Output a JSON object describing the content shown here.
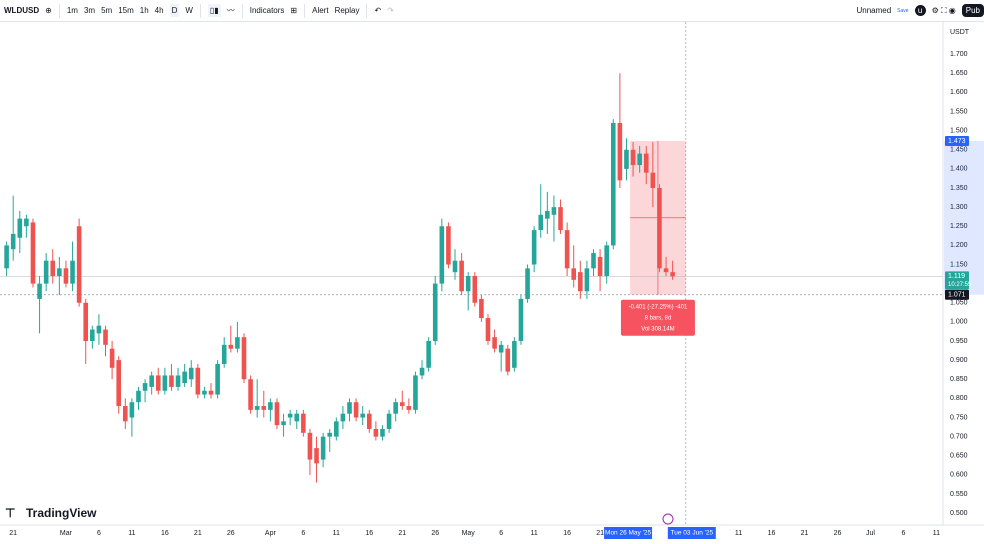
{
  "toolbar": {
    "symbol": "WLDUSD",
    "intervals": [
      "1m",
      "3m",
      "5m",
      "15m",
      "1h",
      "4h",
      "D",
      "W"
    ],
    "indicators": "Indicators",
    "alert": "Alert",
    "replay": "Replay",
    "layout_name": "Unnamed",
    "save": "Save",
    "avatar": "u",
    "publish": "Pub"
  },
  "chart_data": {
    "type": "candlestick",
    "currency": "USDT",
    "logo": "TradingView",
    "up_color": "#26a69a",
    "down_color": "#ef5350",
    "grid": false,
    "xlim": [
      "2025-02-19",
      "2025-07-12"
    ],
    "ylim": [
      0.469,
      1.784
    ],
    "yticks": [
      {
        "value": 0.5,
        "label": "0.500"
      },
      {
        "value": 0.55,
        "label": "0.550"
      },
      {
        "value": 0.6,
        "label": "0.600"
      },
      {
        "value": 0.65,
        "label": "0.650"
      },
      {
        "value": 0.7,
        "label": "0.700"
      },
      {
        "value": 0.75,
        "label": "0.750"
      },
      {
        "value": 0.8,
        "label": "0.800"
      },
      {
        "value": 0.85,
        "label": "0.850"
      },
      {
        "value": 0.9,
        "label": "0.900"
      },
      {
        "value": 0.95,
        "label": "0.950"
      },
      {
        "value": 1.0,
        "label": "1.000"
      },
      {
        "value": 1.05,
        "label": "1.050"
      },
      {
        "value": 1.1,
        "label": "1.100"
      },
      {
        "value": 1.15,
        "label": "1.150"
      },
      {
        "value": 1.2,
        "label": "1.200"
      },
      {
        "value": 1.25,
        "label": "1.250"
      },
      {
        "value": 1.3,
        "label": "1.300"
      },
      {
        "value": 1.35,
        "label": "1.350"
      },
      {
        "value": 1.4,
        "label": "1.400"
      },
      {
        "value": 1.45,
        "label": "1.450"
      },
      {
        "value": 1.5,
        "label": "1.500"
      },
      {
        "value": 1.55,
        "label": "1.550"
      },
      {
        "value": 1.6,
        "label": "1.600"
      },
      {
        "value": 1.65,
        "label": "1.650"
      },
      {
        "value": 1.7,
        "label": "1.700"
      }
    ],
    "xticks": [
      {
        "value": "2025-02-21",
        "label": "21"
      },
      {
        "value": "2025-03-01",
        "label": "Mar"
      },
      {
        "value": "2025-03-06",
        "label": "6"
      },
      {
        "value": "2025-03-11",
        "label": "11"
      },
      {
        "value": "2025-03-16",
        "label": "16"
      },
      {
        "value": "2025-03-21",
        "label": "21"
      },
      {
        "value": "2025-03-26",
        "label": "26"
      },
      {
        "value": "2025-04-01",
        "label": "Apr"
      },
      {
        "value": "2025-04-06",
        "label": "6"
      },
      {
        "value": "2025-04-11",
        "label": "11"
      },
      {
        "value": "2025-04-16",
        "label": "16"
      },
      {
        "value": "2025-04-21",
        "label": "21"
      },
      {
        "value": "2025-04-26",
        "label": "26"
      },
      {
        "value": "2025-05-01",
        "label": "May"
      },
      {
        "value": "2025-05-06",
        "label": "6"
      },
      {
        "value": "2025-05-11",
        "label": "11"
      },
      {
        "value": "2025-05-16",
        "label": "16"
      },
      {
        "value": "2025-05-21",
        "label": "21"
      },
      {
        "value": "2025-06-11",
        "label": "11"
      },
      {
        "value": "2025-06-16",
        "label": "16"
      },
      {
        "value": "2025-06-21",
        "label": "21"
      },
      {
        "value": "2025-06-26",
        "label": "26"
      },
      {
        "value": "2025-07-01",
        "label": "Jul"
      },
      {
        "value": "2025-07-06",
        "label": "6"
      },
      {
        "value": "2025-07-11",
        "label": "11"
      }
    ],
    "x": [
      "2025-02-20",
      "2025-02-21",
      "2025-02-22",
      "2025-02-23",
      "2025-02-24",
      "2025-02-25",
      "2025-02-26",
      "2025-02-27",
      "2025-02-28",
      "2025-03-01",
      "2025-03-02",
      "2025-03-03",
      "2025-03-04",
      "2025-03-05",
      "2025-03-06",
      "2025-03-07",
      "2025-03-08",
      "2025-03-09",
      "2025-03-10",
      "2025-03-11",
      "2025-03-12",
      "2025-03-13",
      "2025-03-14",
      "2025-03-15",
      "2025-03-16",
      "2025-03-17",
      "2025-03-18",
      "2025-03-19",
      "2025-03-20",
      "2025-03-21",
      "2025-03-22",
      "2025-03-23",
      "2025-03-24",
      "2025-03-25",
      "2025-03-26",
      "2025-03-27",
      "2025-03-28",
      "2025-03-29",
      "2025-03-30",
      "2025-03-31",
      "2025-04-01",
      "2025-04-02",
      "2025-04-03",
      "2025-04-04",
      "2025-04-05",
      "2025-04-06",
      "2025-04-07",
      "2025-04-08",
      "2025-04-09",
      "2025-04-10",
      "2025-04-11",
      "2025-04-12",
      "2025-04-13",
      "2025-04-14",
      "2025-04-15",
      "2025-04-16",
      "2025-04-17",
      "2025-04-18",
      "2025-04-19",
      "2025-04-20",
      "2025-04-21",
      "2025-04-22",
      "2025-04-23",
      "2025-04-24",
      "2025-04-25",
      "2025-04-26",
      "2025-04-27",
      "2025-04-28",
      "2025-04-29",
      "2025-04-30",
      "2025-05-01",
      "2025-05-02",
      "2025-05-03",
      "2025-05-04",
      "2025-05-05",
      "2025-05-06",
      "2025-05-07",
      "2025-05-08",
      "2025-05-09",
      "2025-05-10",
      "2025-05-11",
      "2025-05-12",
      "2025-05-13",
      "2025-05-14",
      "2025-05-15",
      "2025-05-16",
      "2025-05-17",
      "2025-05-18",
      "2025-05-19",
      "2025-05-20",
      "2025-05-21",
      "2025-05-22",
      "2025-05-23",
      "2025-05-24",
      "2025-05-25",
      "2025-05-26",
      "2025-05-27",
      "2025-05-28",
      "2025-05-29",
      "2025-05-30",
      "2025-05-31",
      "2025-06-01"
    ],
    "ohlc": [
      [
        1.14,
        1.21,
        1.12,
        1.2
      ],
      [
        1.19,
        1.33,
        1.16,
        1.23
      ],
      [
        1.22,
        1.29,
        1.18,
        1.27
      ],
      [
        1.25,
        1.28,
        1.22,
        1.27
      ],
      [
        1.26,
        1.27,
        1.09,
        1.1
      ],
      [
        1.06,
        1.12,
        0.97,
        1.1
      ],
      [
        1.1,
        1.18,
        1.08,
        1.16
      ],
      [
        1.16,
        1.19,
        1.1,
        1.12
      ],
      [
        1.12,
        1.17,
        1.07,
        1.14
      ],
      [
        1.14,
        1.16,
        1.09,
        1.1
      ],
      [
        1.1,
        1.21,
        1.08,
        1.16
      ],
      [
        1.25,
        1.27,
        1.04,
        1.05
      ],
      [
        1.05,
        1.06,
        0.89,
        0.95
      ],
      [
        0.95,
        0.99,
        0.93,
        0.98
      ],
      [
        0.97,
        1.02,
        0.94,
        0.99
      ],
      [
        0.98,
        0.99,
        0.91,
        0.94
      ],
      [
        0.93,
        0.95,
        0.85,
        0.88
      ],
      [
        0.9,
        0.91,
        0.76,
        0.78
      ],
      [
        0.78,
        0.8,
        0.72,
        0.74
      ],
      [
        0.75,
        0.8,
        0.7,
        0.79
      ],
      [
        0.79,
        0.83,
        0.77,
        0.82
      ],
      [
        0.82,
        0.85,
        0.79,
        0.84
      ],
      [
        0.83,
        0.87,
        0.81,
        0.86
      ],
      [
        0.86,
        0.88,
        0.81,
        0.82
      ],
      [
        0.82,
        0.88,
        0.81,
        0.86
      ],
      [
        0.86,
        0.89,
        0.82,
        0.83
      ],
      [
        0.83,
        0.88,
        0.82,
        0.86
      ],
      [
        0.84,
        0.89,
        0.83,
        0.87
      ],
      [
        0.85,
        0.9,
        0.83,
        0.88
      ],
      [
        0.88,
        0.89,
        0.8,
        0.81
      ],
      [
        0.81,
        0.83,
        0.8,
        0.82
      ],
      [
        0.82,
        0.84,
        0.8,
        0.81
      ],
      [
        0.81,
        0.9,
        0.8,
        0.89
      ],
      [
        0.89,
        0.96,
        0.88,
        0.94
      ],
      [
        0.94,
        0.99,
        0.92,
        0.93
      ],
      [
        0.93,
        1.0,
        0.92,
        0.96
      ],
      [
        0.96,
        0.97,
        0.84,
        0.85
      ],
      [
        0.85,
        0.86,
        0.76,
        0.77
      ],
      [
        0.77,
        0.85,
        0.75,
        0.78
      ],
      [
        0.78,
        0.82,
        0.75,
        0.77
      ],
      [
        0.77,
        0.8,
        0.74,
        0.79
      ],
      [
        0.79,
        0.8,
        0.72,
        0.73
      ],
      [
        0.73,
        0.76,
        0.7,
        0.74
      ],
      [
        0.75,
        0.77,
        0.73,
        0.76
      ],
      [
        0.74,
        0.77,
        0.72,
        0.76
      ],
      [
        0.76,
        0.77,
        0.7,
        0.71
      ],
      [
        0.71,
        0.72,
        0.6,
        0.64
      ],
      [
        0.67,
        0.7,
        0.58,
        0.63
      ],
      [
        0.64,
        0.71,
        0.62,
        0.7
      ],
      [
        0.7,
        0.72,
        0.66,
        0.71
      ],
      [
        0.7,
        0.75,
        0.69,
        0.74
      ],
      [
        0.74,
        0.78,
        0.72,
        0.76
      ],
      [
        0.76,
        0.8,
        0.74,
        0.79
      ],
      [
        0.79,
        0.8,
        0.74,
        0.75
      ],
      [
        0.75,
        0.78,
        0.73,
        0.76
      ],
      [
        0.76,
        0.77,
        0.71,
        0.72
      ],
      [
        0.72,
        0.74,
        0.69,
        0.7
      ],
      [
        0.7,
        0.73,
        0.69,
        0.72
      ],
      [
        0.72,
        0.77,
        0.71,
        0.76
      ],
      [
        0.76,
        0.8,
        0.74,
        0.79
      ],
      [
        0.79,
        0.82,
        0.77,
        0.78
      ],
      [
        0.78,
        0.8,
        0.76,
        0.77
      ],
      [
        0.77,
        0.87,
        0.76,
        0.86
      ],
      [
        0.86,
        0.9,
        0.85,
        0.88
      ],
      [
        0.88,
        0.96,
        0.87,
        0.95
      ],
      [
        0.95,
        1.12,
        0.94,
        1.1
      ],
      [
        1.1,
        1.27,
        1.08,
        1.25
      ],
      [
        1.25,
        1.26,
        1.14,
        1.15
      ],
      [
        1.13,
        1.19,
        1.11,
        1.16
      ],
      [
        1.16,
        1.18,
        1.07,
        1.08
      ],
      [
        1.08,
        1.13,
        1.03,
        1.12
      ],
      [
        1.12,
        1.13,
        1.04,
        1.05
      ],
      [
        1.06,
        1.07,
        1.0,
        1.01
      ],
      [
        1.01,
        1.02,
        0.94,
        0.95
      ],
      [
        0.96,
        0.98,
        0.92,
        0.93
      ],
      [
        0.92,
        0.95,
        0.87,
        0.94
      ],
      [
        0.93,
        0.94,
        0.86,
        0.87
      ],
      [
        0.88,
        0.96,
        0.87,
        0.95
      ],
      [
        0.95,
        1.07,
        0.94,
        1.06
      ],
      [
        1.06,
        1.15,
        1.05,
        1.14
      ],
      [
        1.15,
        1.25,
        1.13,
        1.24
      ],
      [
        1.24,
        1.36,
        1.22,
        1.28
      ],
      [
        1.27,
        1.34,
        1.23,
        1.29
      ],
      [
        1.28,
        1.33,
        1.21,
        1.3
      ],
      [
        1.3,
        1.32,
        1.23,
        1.24
      ],
      [
        1.24,
        1.26,
        1.12,
        1.14
      ],
      [
        1.14,
        1.2,
        1.09,
        1.11
      ],
      [
        1.13,
        1.16,
        1.06,
        1.08
      ],
      [
        1.08,
        1.16,
        1.06,
        1.14
      ],
      [
        1.14,
        1.19,
        1.12,
        1.18
      ],
      [
        1.17,
        1.19,
        1.08,
        1.12
      ],
      [
        1.12,
        1.21,
        1.1,
        1.2
      ],
      [
        1.2,
        1.53,
        1.19,
        1.52
      ],
      [
        1.52,
        1.65,
        1.35,
        1.37
      ],
      [
        1.4,
        1.48,
        1.37,
        1.45
      ],
      [
        1.45,
        1.47,
        1.38,
        1.41
      ],
      [
        1.41,
        1.46,
        1.39,
        1.44
      ],
      [
        1.44,
        1.46,
        1.36,
        1.39
      ],
      [
        1.39,
        1.47,
        1.3,
        1.35
      ],
      [
        1.35,
        1.36,
        1.13,
        1.14
      ],
      [
        1.14,
        1.17,
        1.12,
        1.13
      ],
      [
        1.13,
        1.16,
        1.11,
        1.119
      ]
    ],
    "last_price": 1.119,
    "countdown": "10:27:55",
    "measure": {
      "from": "2025-05-26",
      "to": "2025-06-03",
      "top": 1.473,
      "bottom": 1.071,
      "from_label": "Mon 26 May '25",
      "to_label": "Tue 03 Jun '25",
      "line1": "-0.401 (-27.25%) -401",
      "line2": "8 bars, 8d",
      "line3": "Vol 308.14M"
    }
  }
}
